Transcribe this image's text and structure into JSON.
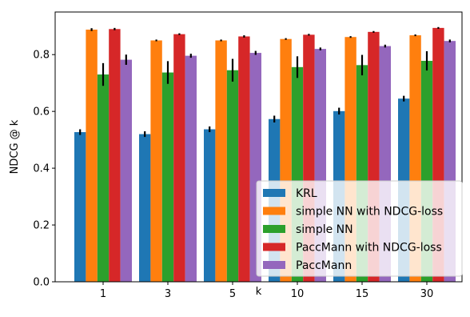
{
  "chart_data": {
    "type": "bar",
    "title": "",
    "xlabel": "k",
    "ylabel": "NDCG @ k",
    "ylim": [
      0,
      0.95
    ],
    "yticks": [
      "0.0",
      "0.2",
      "0.4",
      "0.6",
      "0.8"
    ],
    "categories": [
      "1",
      "3",
      "5",
      "10",
      "15",
      "30"
    ],
    "grid": false,
    "legend_position": "lower-right",
    "series": [
      {
        "name": "KRL",
        "color": "#1f77b4",
        "values": [
          0.527,
          0.52,
          0.537,
          0.573,
          0.601,
          0.645
        ],
        "errors": [
          0.01,
          0.01,
          0.01,
          0.012,
          0.012,
          0.01
        ]
      },
      {
        "name": "simple NN with NDCG-loss",
        "color": "#ff7f0e",
        "values": [
          0.888,
          0.85,
          0.85,
          0.855,
          0.862,
          0.868
        ],
        "errors": [
          0.005,
          0.003,
          0.003,
          0.003,
          0.003,
          0.003
        ]
      },
      {
        "name": "simple NN",
        "color": "#2ca02c",
        "values": [
          0.73,
          0.737,
          0.745,
          0.756,
          0.763,
          0.778
        ],
        "errors": [
          0.04,
          0.04,
          0.04,
          0.038,
          0.036,
          0.034
        ]
      },
      {
        "name": "PaccMann with NDCG-loss",
        "color": "#d62728",
        "values": [
          0.89,
          0.872,
          0.864,
          0.87,
          0.88,
          0.894
        ],
        "errors": [
          0.004,
          0.003,
          0.004,
          0.003,
          0.003,
          0.003
        ]
      },
      {
        "name": "PaccMann",
        "color": "#9467bd",
        "values": [
          0.782,
          0.796,
          0.806,
          0.82,
          0.83,
          0.848
        ],
        "errors": [
          0.018,
          0.007,
          0.007,
          0.005,
          0.005,
          0.005
        ]
      }
    ]
  }
}
